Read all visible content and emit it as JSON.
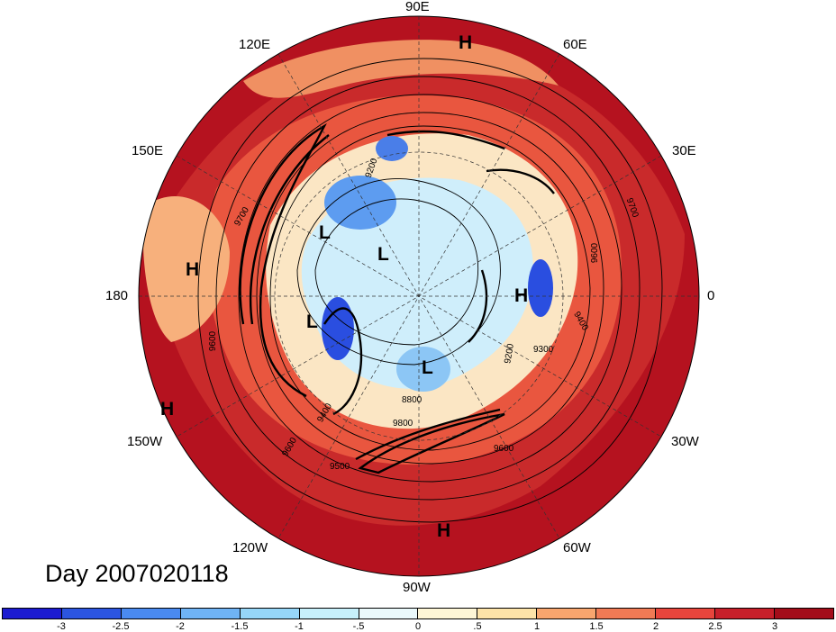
{
  "title": "Day 2007020118",
  "longitude_labels": {
    "e90": "90E",
    "e120": "120E",
    "e60": "60E",
    "e150": "150E",
    "e30": "30E",
    "w180": "180",
    "zero": "0",
    "w150": "150W",
    "w30": "30W",
    "w120": "120W",
    "w60": "60W",
    "w90": "90W"
  },
  "pressure_markers": [
    {
      "type": "H"
    },
    {
      "type": "H"
    },
    {
      "type": "H"
    },
    {
      "type": "H"
    },
    {
      "type": "H"
    },
    {
      "type": "L"
    },
    {
      "type": "L"
    },
    {
      "type": "L"
    },
    {
      "type": "L"
    }
  ],
  "contour_labels": [
    "9700",
    "9200",
    "9600",
    "9700",
    "9600",
    "9400",
    "9300",
    "9200",
    "9600",
    "9500",
    "9400",
    "9800",
    "8800",
    "9600"
  ],
  "colorbar": {
    "colors": [
      "#1c1bd0",
      "#2c55e0",
      "#4a8af0",
      "#6fb3f5",
      "#96d6f8",
      "#c7f0fb",
      "#eaf9fb",
      "#fef6d6",
      "#fde3a8",
      "#f8a56e",
      "#f07a55",
      "#e8453c",
      "#c71f2a",
      "#a30d1a"
    ],
    "ticks": [
      "-3",
      "-2.5",
      "-2",
      "-1.5",
      "-1",
      "-.5",
      "0",
      ".5",
      "1",
      "1.5",
      "2",
      "2.5",
      "3"
    ]
  }
}
